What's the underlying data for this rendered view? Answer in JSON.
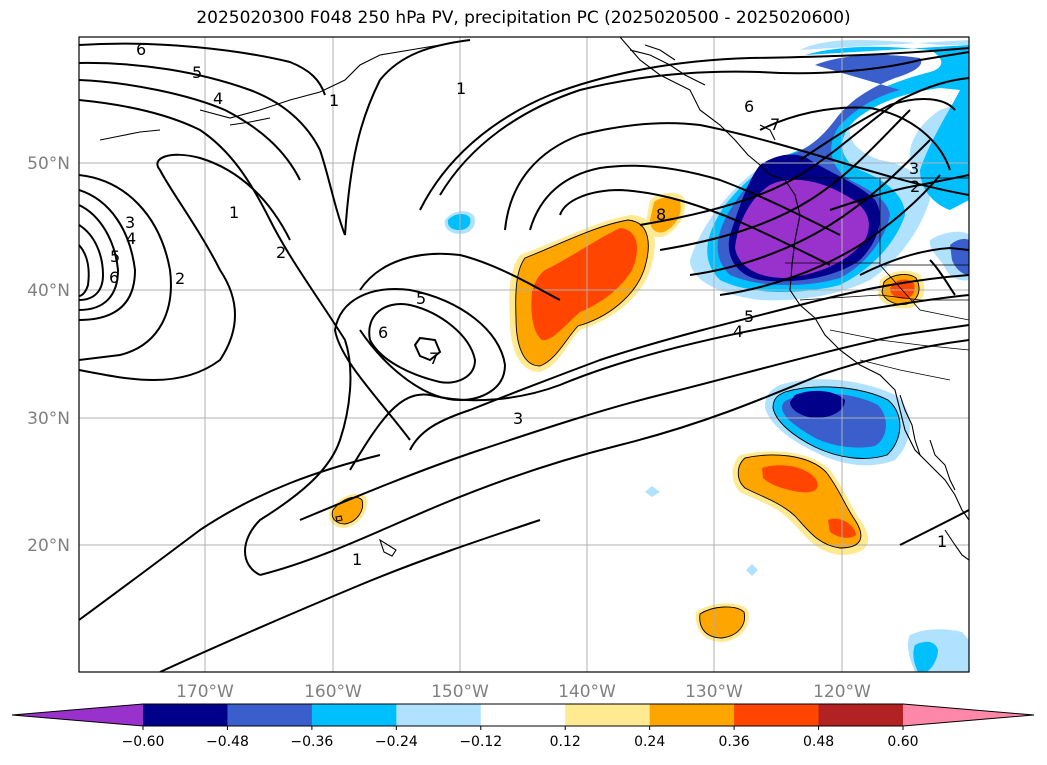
{
  "title": "2025020300 F048 250 hPa PV, precipitation PC (2025020500 - 2025020600)",
  "map": {
    "lat_labels": [
      "50°N",
      "40°N",
      "30°N",
      "20°N"
    ],
    "lon_labels": [
      "170°W",
      "160°W",
      "150°W",
      "140°W",
      "130°W",
      "120°W"
    ],
    "pv_contour_labels": [
      "6",
      "5",
      "4",
      "1",
      "1",
      "2",
      "3",
      "4",
      "5",
      "6",
      "1",
      "2",
      "5",
      "6",
      "7",
      "3",
      "1",
      "6",
      "7",
      "8",
      "3",
      "2",
      "4",
      "5",
      "1"
    ]
  },
  "colorbar": {
    "colors": [
      "#9932CC",
      "#00008B",
      "#3A5FCD",
      "#00BFFF",
      "#B0E2FF",
      "#FFFFFF",
      "#FFE991",
      "#FFA500",
      "#FF4500",
      "#B22222",
      "#FF88A8"
    ],
    "tick_labels": [
      "−0.60",
      "−0.48",
      "−0.36",
      "−0.24",
      "−0.12",
      "0.12",
      "0.24",
      "0.36",
      "0.48",
      "0.60"
    ]
  }
}
